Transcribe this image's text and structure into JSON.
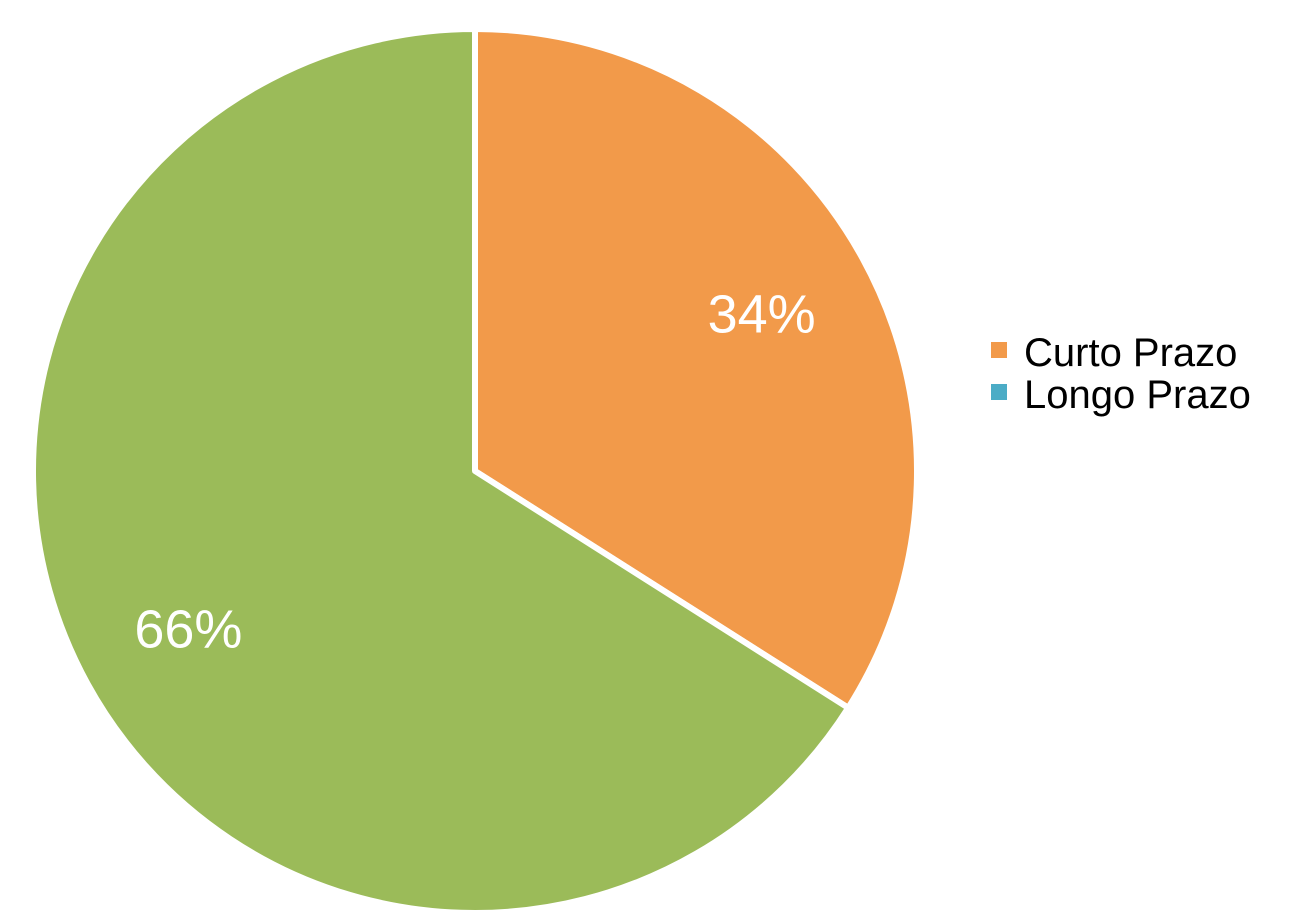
{
  "chart_data": {
    "type": "pie",
    "title": "",
    "legend_position": "right",
    "slices": [
      {
        "label": "Curto Prazo",
        "value": 34,
        "display": "34%",
        "color": "#F29A4A"
      },
      {
        "label": "Longo Prazo",
        "value": 0,
        "display": "",
        "color": "#4BACC6"
      },
      {
        "label": "",
        "value": 66,
        "display": "66%",
        "color": "#9BBB59"
      }
    ]
  }
}
